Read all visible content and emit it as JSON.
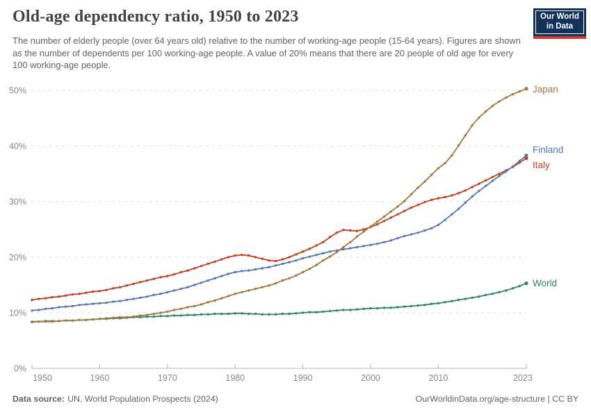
{
  "header": {
    "title": "Old-age dependency ratio, 1950 to 2023",
    "subtitle": "The number of elderly people (over 64 years old) relative to the number of working-age people (15-64 years). Figures are shown as the number of dependents per 100 working-age people. A value of 20% means that there are 20 people of old age for every 100 working-age people.",
    "logo_text": "Our World\nin Data",
    "logo_bg_color": "#12315b",
    "logo_stripe_color": "#cc3b34"
  },
  "footer": {
    "source_label": "Data source:",
    "source_text": "UN, World Population Prospects (2024)",
    "credit": "OurWorldinData.org/age-structure | CC BY"
  },
  "chart_data": {
    "type": "line",
    "title": "Old-age dependency ratio, 1950 to 2023",
    "xlabel": "",
    "ylabel": "",
    "grid": "horizontal-dashed",
    "legend_position": "right-end-labels",
    "ylim": [
      0,
      50
    ],
    "yticks": [
      0,
      10,
      20,
      30,
      40,
      50
    ],
    "ytick_suffix": "%",
    "xticks": [
      1950,
      1960,
      1970,
      1980,
      1990,
      2000,
      2010,
      2023
    ],
    "xlim": [
      1950,
      2023
    ],
    "years": [
      1950,
      1951,
      1952,
      1953,
      1954,
      1955,
      1956,
      1957,
      1958,
      1959,
      1960,
      1961,
      1962,
      1963,
      1964,
      1965,
      1966,
      1967,
      1968,
      1969,
      1970,
      1971,
      1972,
      1973,
      1974,
      1975,
      1976,
      1977,
      1978,
      1979,
      1980,
      1981,
      1982,
      1983,
      1984,
      1985,
      1986,
      1987,
      1988,
      1989,
      1990,
      1991,
      1992,
      1993,
      1994,
      1995,
      1996,
      1997,
      1998,
      1999,
      2000,
      2001,
      2002,
      2003,
      2004,
      2005,
      2006,
      2007,
      2008,
      2009,
      2010,
      2011,
      2012,
      2013,
      2014,
      2015,
      2016,
      2017,
      2018,
      2019,
      2020,
      2021,
      2022,
      2023
    ],
    "series": [
      {
        "name": "Italy",
        "color": "#bd4224",
        "label_dy": 10,
        "values": [
          12.3,
          12.5,
          12.6,
          12.8,
          12.9,
          13.1,
          13.3,
          13.4,
          13.6,
          13.8,
          13.9,
          14.1,
          14.4,
          14.6,
          14.9,
          15.2,
          15.5,
          15.8,
          16.1,
          16.4,
          16.6,
          16.9,
          17.3,
          17.6,
          18.0,
          18.4,
          18.8,
          19.2,
          19.6,
          20.0,
          20.3,
          20.4,
          20.3,
          20.0,
          19.7,
          19.4,
          19.3,
          19.6,
          20.0,
          20.5,
          21.0,
          21.5,
          22.1,
          22.7,
          23.6,
          24.4,
          24.9,
          24.8,
          24.7,
          25.0,
          25.4,
          25.9,
          26.5,
          27.1,
          27.7,
          28.3,
          28.9,
          29.4,
          29.9,
          30.3,
          30.6,
          30.8,
          31.1,
          31.5,
          32.0,
          32.6,
          33.2,
          33.8,
          34.4,
          35.0,
          35.6,
          36.2,
          37.0,
          37.8
        ]
      },
      {
        "name": "Finland",
        "color": "#5678ae",
        "label_dy": -8,
        "values": [
          10.4,
          10.5,
          10.7,
          10.8,
          11.0,
          11.1,
          11.2,
          11.4,
          11.5,
          11.6,
          11.7,
          11.8,
          12.0,
          12.1,
          12.3,
          12.5,
          12.7,
          12.9,
          13.2,
          13.4,
          13.7,
          14.0,
          14.3,
          14.6,
          15.0,
          15.4,
          15.8,
          16.2,
          16.6,
          17.0,
          17.3,
          17.5,
          17.6,
          17.8,
          18.0,
          18.2,
          18.5,
          18.8,
          19.1,
          19.4,
          19.8,
          20.1,
          20.4,
          20.7,
          21.0,
          21.2,
          21.4,
          21.6,
          21.8,
          22.0,
          22.2,
          22.4,
          22.7,
          23.0,
          23.4,
          23.8,
          24.1,
          24.4,
          24.8,
          25.2,
          25.8,
          26.7,
          27.7,
          28.7,
          29.8,
          30.9,
          31.9,
          32.8,
          33.7,
          34.6,
          35.4,
          36.3,
          37.3,
          38.3
        ]
      },
      {
        "name": "World",
        "color": "#2d8465",
        "label_dy": 0,
        "values": [
          8.4,
          8.4,
          8.5,
          8.5,
          8.5,
          8.6,
          8.6,
          8.7,
          8.7,
          8.8,
          8.9,
          8.9,
          9.0,
          9.0,
          9.1,
          9.2,
          9.2,
          9.3,
          9.3,
          9.4,
          9.4,
          9.5,
          9.5,
          9.6,
          9.6,
          9.7,
          9.7,
          9.8,
          9.8,
          9.8,
          9.9,
          9.9,
          9.8,
          9.8,
          9.7,
          9.7,
          9.7,
          9.8,
          9.8,
          9.9,
          10.0,
          10.1,
          10.1,
          10.2,
          10.3,
          10.4,
          10.5,
          10.5,
          10.6,
          10.7,
          10.8,
          10.8,
          10.9,
          10.9,
          11.0,
          11.1,
          11.2,
          11.3,
          11.4,
          11.6,
          11.7,
          11.9,
          12.1,
          12.3,
          12.5,
          12.7,
          12.9,
          13.2,
          13.4,
          13.7,
          14.0,
          14.4,
          14.8,
          15.3
        ]
      },
      {
        "name": "Japan",
        "color": "#a2793d",
        "label_dy": 1,
        "values": [
          8.3,
          8.4,
          8.4,
          8.4,
          8.5,
          8.6,
          8.6,
          8.7,
          8.7,
          8.8,
          8.9,
          9.0,
          9.1,
          9.2,
          9.2,
          9.3,
          9.5,
          9.6,
          9.8,
          10.0,
          10.2,
          10.5,
          10.7,
          11.0,
          11.2,
          11.5,
          11.9,
          12.2,
          12.6,
          13.0,
          13.4,
          13.7,
          14.0,
          14.3,
          14.6,
          14.9,
          15.3,
          15.8,
          16.2,
          16.7,
          17.3,
          17.9,
          18.6,
          19.4,
          20.1,
          20.9,
          21.8,
          22.7,
          23.7,
          24.6,
          25.5,
          26.4,
          27.3,
          28.2,
          29.1,
          30.1,
          31.3,
          32.5,
          33.6,
          34.8,
          36.0,
          36.9,
          38.3,
          40.1,
          41.9,
          43.7,
          45.1,
          46.2,
          47.2,
          48.0,
          48.7,
          49.3,
          49.8,
          50.3
        ]
      }
    ]
  }
}
